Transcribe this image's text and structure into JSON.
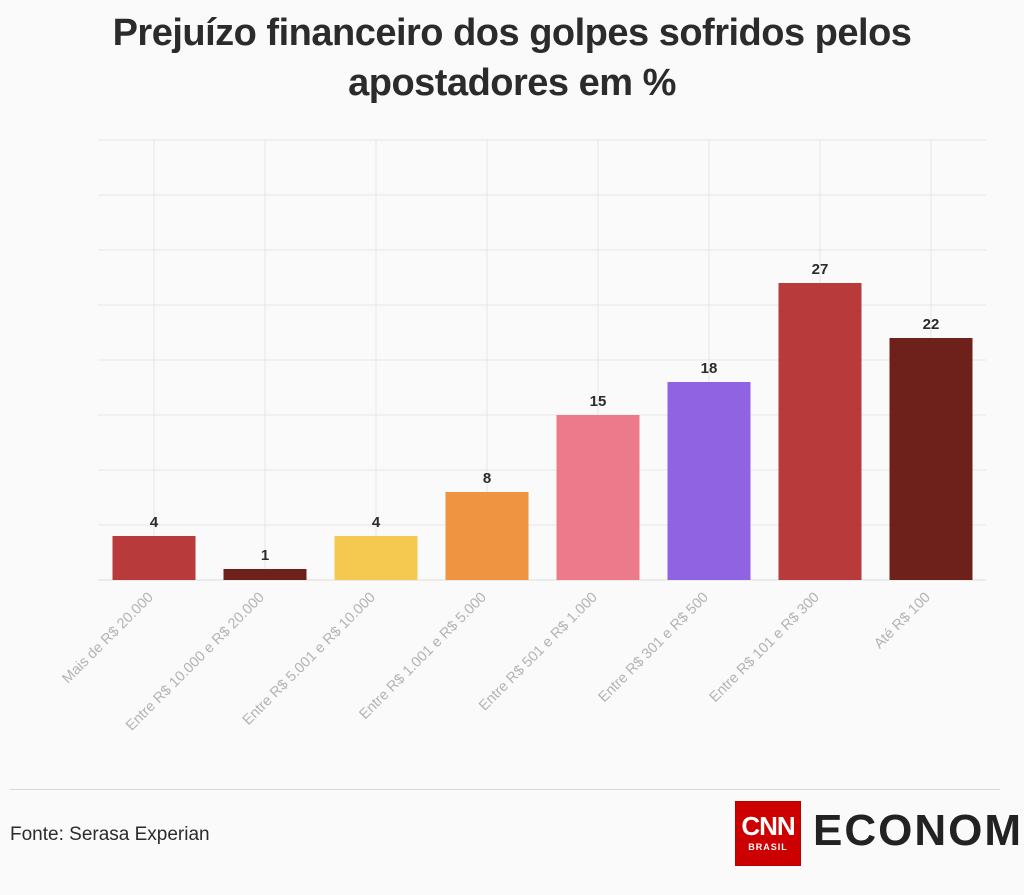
{
  "title": "Prejuízo financeiro dos golpes sofridos pelos apostadores em %",
  "source": "Fonte: Serasa Experian",
  "logo": {
    "cnn": "CNN",
    "cnn_sub": "BRASIL",
    "economia": "ECONOMIA",
    "brand_color": "#cc0000",
    "accent_color": "#3fc4b8"
  },
  "chart_data": {
    "type": "bar",
    "title": "Prejuízo financeiro dos golpes sofridos pelos apostadores em %",
    "xlabel": "",
    "ylabel": "",
    "ylim": [
      0,
      40
    ],
    "grid": true,
    "categories": [
      "Mais de R$ 20.000",
      "Entre R$ 10.000 e R$ 20.000",
      "Entre R$ 5.001 e R$ 10.000",
      "Entre R$ 1.001 e R$ 5.000",
      "Entre R$ 501 e R$ 1.000",
      "Entre R$ 301 e R$ 500",
      "Entre R$ 101 e R$ 300",
      "Até R$ 100"
    ],
    "values": [
      4,
      1,
      4,
      8,
      15,
      18,
      27,
      22
    ],
    "colors": [
      "#b83a3a",
      "#6e211b",
      "#f5c94f",
      "#ef9440",
      "#ed7a8a",
      "#9063e3",
      "#b83a3a",
      "#6e211b"
    ]
  }
}
